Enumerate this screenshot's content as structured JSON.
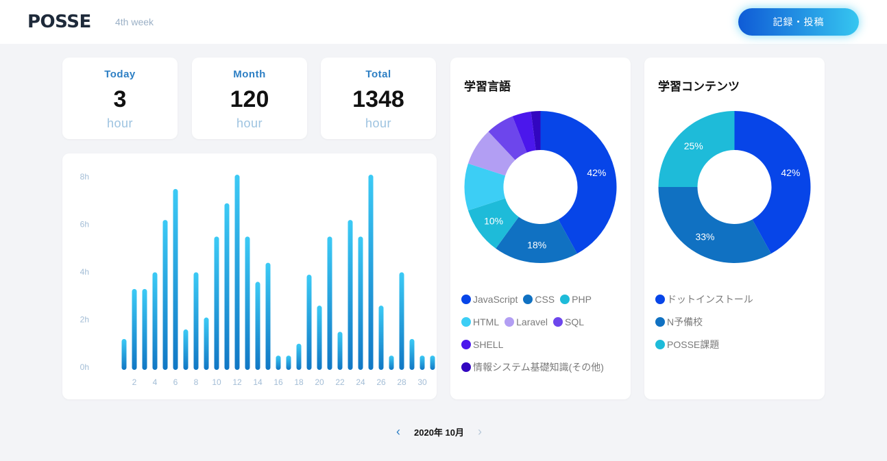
{
  "header": {
    "logo": "POSSE",
    "week": "4th week",
    "post_button": "記録・投稿"
  },
  "stats": [
    {
      "label": "Today",
      "value": "3",
      "unit": "hour"
    },
    {
      "label": "Month",
      "value": "120",
      "unit": "hour"
    },
    {
      "label": "Total",
      "value": "1348",
      "unit": "hour"
    }
  ],
  "bar_chart": {
    "chart_data": {
      "type": "bar",
      "categories": [
        "1",
        "2",
        "3",
        "4",
        "5",
        "6",
        "7",
        "8",
        "9",
        "10",
        "11",
        "12",
        "13",
        "14",
        "15",
        "16",
        "17",
        "18",
        "19",
        "20",
        "21",
        "22",
        "23",
        "24",
        "25",
        "26",
        "27",
        "28",
        "29",
        "30",
        "31"
      ],
      "values": [
        1.3,
        3.4,
        3.4,
        4.1,
        6.3,
        7.6,
        1.7,
        4.1,
        2.2,
        5.6,
        7.0,
        8.2,
        5.6,
        3.7,
        4.5,
        0.6,
        0.6,
        1.1,
        4.0,
        2.7,
        5.6,
        1.6,
        6.3,
        5.6,
        8.2,
        2.7,
        0.6,
        4.1,
        1.3,
        0.6,
        0.6
      ],
      "yticks": [
        "8h",
        "6h",
        "4h",
        "2h",
        "0h"
      ],
      "xticks": [
        "2",
        "4",
        "6",
        "8",
        "10",
        "12",
        "14",
        "16",
        "18",
        "20",
        "22",
        "24",
        "26",
        "28",
        "30"
      ],
      "ylim": [
        0,
        8
      ],
      "colors": [
        "#3ccaf5",
        "#1177c4"
      ]
    }
  },
  "languages": {
    "title": "学習言語",
    "chart_data": {
      "type": "pie",
      "values": [
        42,
        18,
        10,
        10,
        8,
        6,
        4,
        2
      ],
      "percent_labels": [
        "42%",
        "18%",
        "10%",
        "",
        "",
        "",
        "",
        ""
      ],
      "colors": [
        "#0745e8",
        "#1071c2",
        "#1ebbd9",
        "#3ccef5",
        "#b29ef3",
        "#6d46ec",
        "#4b17ec",
        "#3206c0"
      ]
    },
    "legend": [
      {
        "name": "JavaScript",
        "color": "#0745e8"
      },
      {
        "name": "CSS",
        "color": "#1071c2"
      },
      {
        "name": "PHP",
        "color": "#1ebbd9"
      },
      {
        "name": "HTML",
        "color": "#3ccef5"
      },
      {
        "name": "Laravel",
        "color": "#b29ef3"
      },
      {
        "name": "SQL",
        "color": "#6d46ec"
      },
      {
        "name": "SHELL",
        "color": "#4b17ec"
      },
      {
        "name": "情報システム基礎知識(その他)",
        "color": "#3206c0"
      }
    ]
  },
  "contents": {
    "title": "学習コンテンツ",
    "chart_data": {
      "type": "pie",
      "values": [
        42,
        33,
        25
      ],
      "percent_labels": [
        "42%",
        "33%",
        "25%"
      ],
      "colors": [
        "#0745e8",
        "#1071c2",
        "#1ebbd9"
      ]
    },
    "legend": [
      {
        "name": "ドットインストール",
        "color": "#0745e8"
      },
      {
        "name": "N予備校",
        "color": "#1071c2"
      },
      {
        "name": "POSSE課題",
        "color": "#1ebbd9"
      }
    ]
  },
  "month_nav": {
    "prev": "‹",
    "label": "2020年 10月",
    "next": "›"
  }
}
